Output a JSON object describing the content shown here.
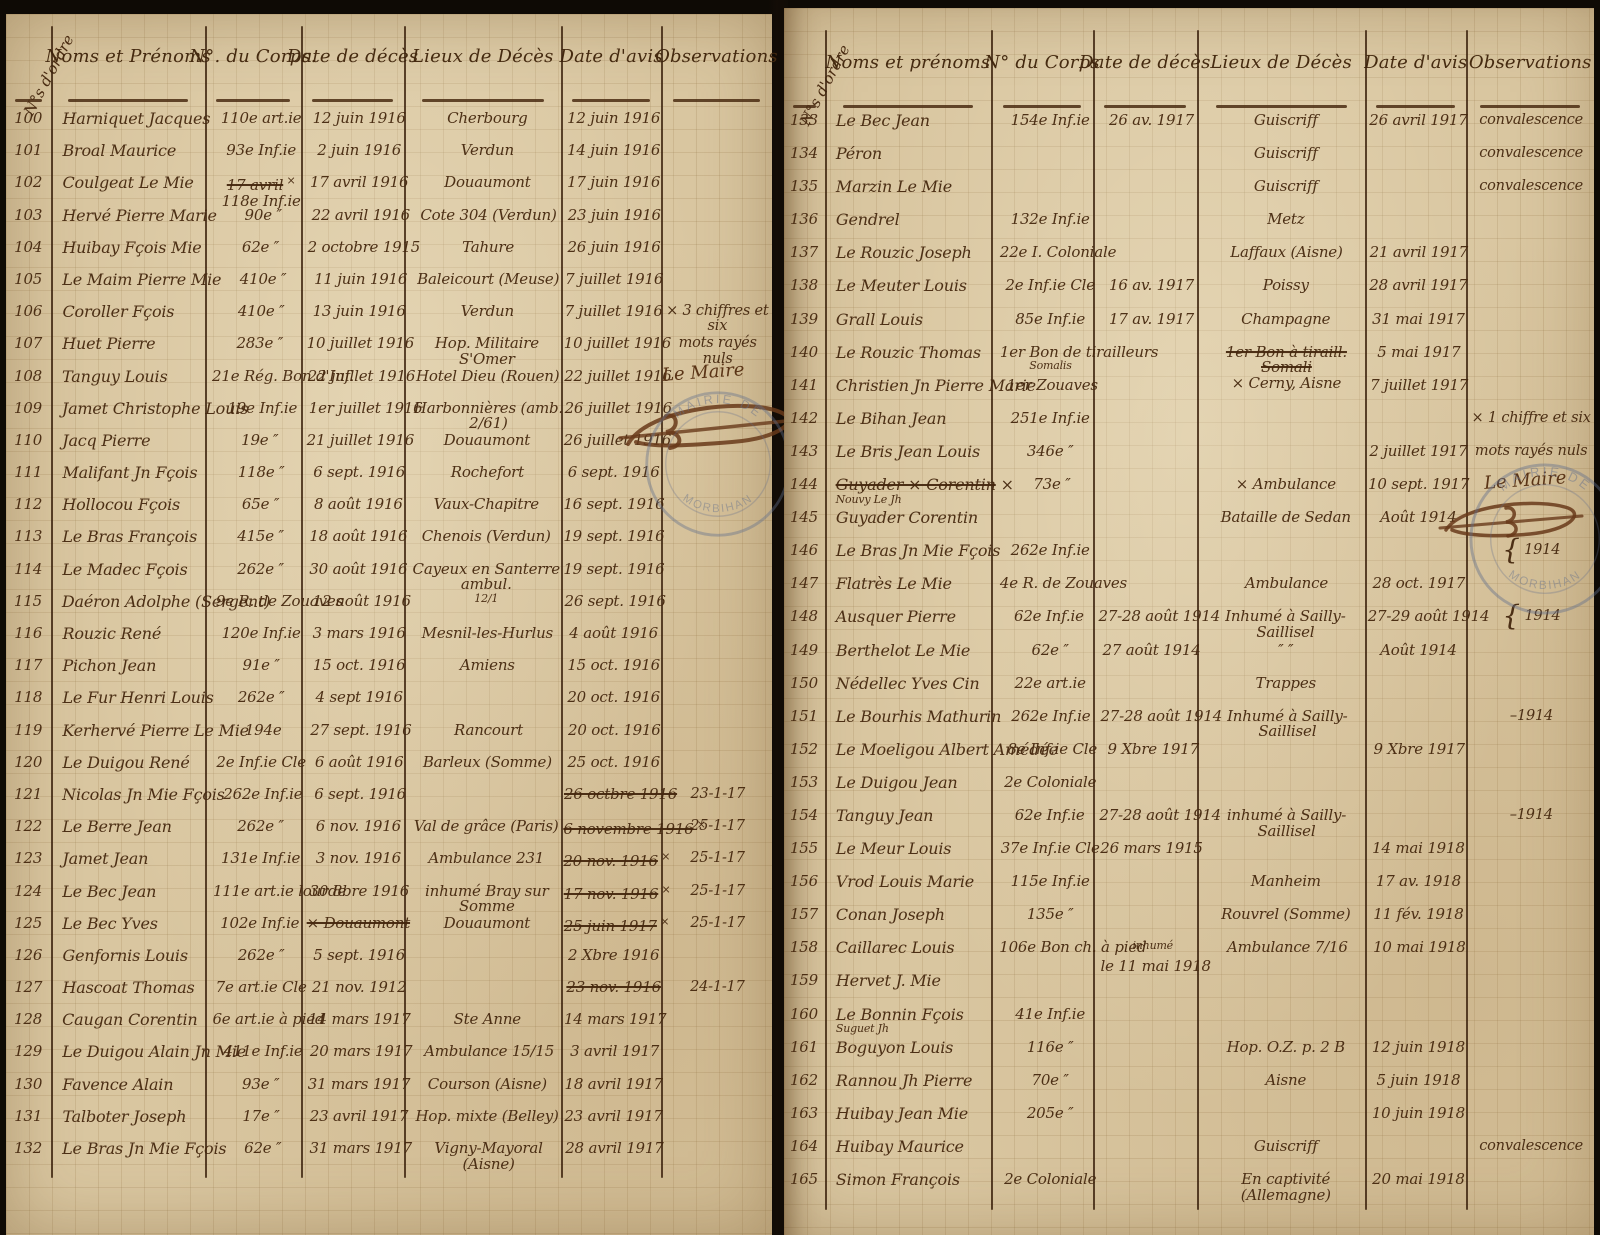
{
  "pages": [
    {
      "rot_label": "N°s d'ordre",
      "headers": {
        "noms": "Noms et Prénoms",
        "corps": "N°. du Corps.",
        "deces": "Date de décès",
        "lieux": "Lieux de Décès",
        "avis": "Date d'avis",
        "obs": "Observations"
      },
      "annotations": {
        "maire": "Le Maire",
        "stamp_top": "MAIRIE DE",
        "stamp_bottom": "MORBIHAN"
      },
      "rows": [
        {
          "n": "100",
          "name": "Harniquet Jacques",
          "corps": "110e art.ie",
          "dd": "12 juin 1916",
          "lieu": "Cherbourg",
          "da": "12 juin 1916",
          "obs": ""
        },
        {
          "n": "101",
          "name": "Broal Maurice",
          "corps": "93e Inf.ie",
          "dd": "2 juin 1916",
          "lieu": "Verdun",
          "da": "14 juin 1916",
          "obs": ""
        },
        {
          "n": "102",
          "name": "Coulgeat Le Mie",
          "corps": [
            {
              "t": "17 avril",
              "s": true
            },
            {
              "t": " ×",
              "sm": true
            },
            {
              "t": "118e Inf.ie",
              "br": true
            }
          ],
          "dd": "17 avril 1916",
          "lieu": "Douaumont",
          "da": "17 juin 1916",
          "obs": ""
        },
        {
          "n": "103",
          "name": "Hervé Pierre Marie",
          "corps": "90e ″",
          "dd": "22 avril 1916",
          "lieu": "Cote 304 (Verdun)",
          "da": "23 juin 1916",
          "obs": ""
        },
        {
          "n": "104",
          "name": "Huibay Fçois Mie",
          "corps": "62e ″",
          "dd": "2 octobre 1915",
          "lieu": "Tahure",
          "da": "26 juin 1916",
          "obs": ""
        },
        {
          "n": "105",
          "name": "Le Maim Pierre Mie",
          "corps": "410e ″",
          "dd": "11 juin 1916",
          "lieu": "Baleicourt (Meuse)",
          "da": "7 juillet 1916",
          "obs": ""
        },
        {
          "n": "106",
          "name": "Coroller Fçois",
          "corps": "410e ″",
          "dd": "13 juin 1916",
          "lieu": "Verdun",
          "da": "7 juillet 1916",
          "obs": "× 3 chiffres et six"
        },
        {
          "n": "107",
          "name": "Huet Pierre",
          "corps": "283e ″",
          "dd": "10 juillet 1916",
          "lieu": "Hop. Militaire S'Omer",
          "da": "10 juillet 1916",
          "obs": "mots rayés nuls"
        },
        {
          "n": "108",
          "name": "Tanguy Louis",
          "corps": "21e Rég. Bon d'Inf.",
          "dd": "22 juillet 1916",
          "lieu": "Hotel Dieu (Rouen)",
          "da": "22 juillet 1916",
          "obs": ""
        },
        {
          "n": "109",
          "name": "Jamet Christophe Louis",
          "corps": "19e Inf.ie",
          "dd": "1er juillet 1916",
          "lieu": "Harbonnières (amb. 2/61)",
          "da": "26 juillet 1916",
          "obs": ""
        },
        {
          "n": "110",
          "name": "Jacq Pierre",
          "corps": "19e ″",
          "dd": "21 juillet 1916",
          "lieu": "Douaumont",
          "da": "26 juillet 1916",
          "obs": ""
        },
        {
          "n": "111",
          "name": "Malifant Jn Fçois",
          "corps": "118e ″",
          "dd": "6 sept. 1916",
          "lieu": "Rochefort",
          "da": "6 sept. 1916",
          "obs": ""
        },
        {
          "n": "112",
          "name": "Hollocou Fçois",
          "corps": "65e ″",
          "dd": "8 août 1916",
          "lieu": "Vaux-Chapitre",
          "da": "16 sept. 1916",
          "obs": ""
        },
        {
          "n": "113",
          "name": "Le Bras François",
          "corps": "415e ″",
          "dd": "18 août 1916",
          "lieu": "Chenois (Verdun)",
          "da": "19 sept. 1916",
          "obs": ""
        },
        {
          "n": "114",
          "name": "Le Madec Fçois",
          "corps": "262e ″",
          "dd": "30 août 1916",
          "lieu": [
            {
              "t": "Cayeux en Santerre ambul."
            },
            {
              "t": "12/1",
              "br": true,
              "sm": true
            }
          ],
          "da": "19 sept. 1916",
          "obs": ""
        },
        {
          "n": "115",
          "name": "Daéron Adolphe (Sergent)",
          "corps": "9e R. de Zouaves",
          "dd": "12 août 1916",
          "lieu": "",
          "da": "26 sept. 1916",
          "obs": ""
        },
        {
          "n": "116",
          "name": "Rouzic René",
          "corps": "120e Inf.ie",
          "dd": "3 mars 1916",
          "lieu": "Mesnil-les-Hurlus",
          "da": "4 août 1916",
          "obs": ""
        },
        {
          "n": "117",
          "name": "Pichon Jean",
          "corps": "91e ″",
          "dd": "15 oct. 1916",
          "lieu": "Amiens",
          "da": "15 oct. 1916",
          "obs": ""
        },
        {
          "n": "118",
          "name": "Le Fur Henri Louis",
          "corps": "262e ″",
          "dd": "4 sept 1916",
          "lieu": "",
          "da": "20 oct. 1916",
          "obs": ""
        },
        {
          "n": "119",
          "name": "Kerhervé Pierre Le Mie",
          "corps": "194e",
          "dd": "27 sept. 1916",
          "lieu": "Rancourt",
          "da": "20 oct. 1916",
          "obs": ""
        },
        {
          "n": "120",
          "name": "Le Duigou René",
          "corps": "2e Inf.ie Cle",
          "dd": "6 août 1916",
          "lieu": "Barleux (Somme)",
          "da": "25 oct. 1916",
          "obs": ""
        },
        {
          "n": "121",
          "name": "Nicolas Jn Mie Fçois",
          "corps": "262e Inf.ie",
          "dd": "6 sept. 1916",
          "lieu": "",
          "da": [
            {
              "t": "26 octbre 1916",
              "s": true
            }
          ],
          "obs": "23-1-17"
        },
        {
          "n": "122",
          "name": "Le Berre Jean",
          "corps": "262e ″",
          "dd": "6 nov. 1916",
          "lieu": "Val de grâce (Paris)",
          "da": [
            {
              "t": "6 novembre 1916",
              "s": true
            },
            {
              "t": " ×",
              "sm": true
            }
          ],
          "obs": "25-1-17"
        },
        {
          "n": "123",
          "name": "Jamet Jean",
          "corps": "131e Inf.ie",
          "dd": "3 nov. 1916",
          "lieu": "Ambulance 231",
          "da": [
            {
              "t": "20 nov. 1916",
              "s": true
            },
            {
              "t": " ×",
              "sm": true
            }
          ],
          "obs": "25-1-17"
        },
        {
          "n": "124",
          "name": "Le Bec Jean",
          "corps": "111e art.ie lourde",
          "dd": "30 8bre 1916",
          "lieu": "inhumé Bray sur Somme",
          "da": [
            {
              "t": "17 nov. 1916",
              "s": true
            },
            {
              "t": " ×",
              "sm": true
            }
          ],
          "obs": "25-1-17"
        },
        {
          "n": "125",
          "name": "Le Bec Yves",
          "corps": "102e Inf.ie",
          "dd": [
            {
              "t": "× Douaumont",
              "s": true
            }
          ],
          "lieu": "Douaumont",
          "da": [
            {
              "t": "25 juin 1917",
              "s": true
            },
            {
              "t": " ×",
              "sm": true
            }
          ],
          "obs": "25-1-17"
        },
        {
          "n": "126",
          "name": "Genfornis Louis",
          "corps": "262e ″",
          "dd": "5 sept. 1916",
          "lieu": "",
          "da": "2 Xbre 1916",
          "obs": ""
        },
        {
          "n": "127",
          "name": "Hascoat Thomas",
          "corps": "7e art.ie Cle",
          "dd": "21 nov. 1912",
          "lieu": "",
          "da": [
            {
              "t": "23 nov. 1916",
              "s": true
            }
          ],
          "obs": "24-1-17"
        },
        {
          "n": "128",
          "name": "Caugan Corentin",
          "corps": "6e art.ie à pied",
          "dd": "14 mars 1917",
          "lieu": "Ste Anne",
          "da": "14 mars 1917",
          "obs": ""
        },
        {
          "n": "129",
          "name": "Le Duigou Alain Jn Mie",
          "corps": "411e Inf.ie",
          "dd": "20 mars 1917",
          "lieu": "Ambulance 15/15",
          "da": "3 avril 1917",
          "obs": ""
        },
        {
          "n": "130",
          "name": "Favence Alain",
          "corps": "93e ″",
          "dd": "31 mars 1917",
          "lieu": "Courson (Aisne)",
          "da": "18 avril 1917",
          "obs": ""
        },
        {
          "n": "131",
          "name": "Talboter Joseph",
          "corps": "17e ″",
          "dd": "23 avril 1917",
          "lieu": "Hop. mixte (Belley)",
          "da": "23 avril 1917",
          "obs": ""
        },
        {
          "n": "132",
          "name": "Le Bras Jn Mie Fçois",
          "corps": "62e ″",
          "dd": "31 mars 1917",
          "lieu": "Vigny-Mayoral (Aisne)",
          "da": "28 avril 1917",
          "obs": ""
        }
      ]
    },
    {
      "rot_label": "N°s d'ordre",
      "headers": {
        "noms": "Noms et prénoms",
        "corps": "N° du Corps",
        "deces": "Date de décès",
        "lieux": "Lieux de Décès",
        "avis": "Date d'avis",
        "obs": "Observations"
      },
      "annotations": {
        "maire": "Le Maire",
        "stamp_top": "MAIRIE DE",
        "stamp_bottom": "MORBIHAN"
      },
      "rows": [
        {
          "n": "133",
          "name": "Le Bec Jean",
          "corps": "154e Inf.ie",
          "dd": "26 av. 1917",
          "lieu": "Guiscriff",
          "da": "26 avril 1917",
          "obs": "convalescence"
        },
        {
          "n": "134",
          "name": "Péron",
          "corps": "",
          "dd": "",
          "lieu": "Guiscriff",
          "da": "",
          "obs": "convalescence"
        },
        {
          "n": "135",
          "name": "Marzin Le Mie",
          "corps": "",
          "dd": "",
          "lieu": "Guiscriff",
          "da": "",
          "obs": "convalescence"
        },
        {
          "n": "136",
          "name": "Gendrel",
          "corps": "132e Inf.ie",
          "dd": "",
          "lieu": "Metz",
          "da": "",
          "obs": ""
        },
        {
          "n": "137",
          "name": "Le Rouzic Joseph",
          "corps": "22e I. Coloniale",
          "dd": "",
          "lieu": "Laffaux (Aisne)",
          "da": "21 avril 1917",
          "obs": ""
        },
        {
          "n": "138",
          "name": "Le Meuter Louis",
          "corps": "2e Inf.ie Cle",
          "dd": "16 av. 1917",
          "lieu": "Poissy",
          "da": "28 avril 1917",
          "obs": ""
        },
        {
          "n": "139",
          "name": "Grall Louis",
          "corps": "85e Inf.ie",
          "dd": "17 av. 1917",
          "lieu": "Champagne",
          "da": "31 mai 1917",
          "obs": ""
        },
        {
          "n": "140",
          "name": "Le Rouzic Thomas",
          "corps": [
            {
              "t": "1er Bon de tirailleurs"
            },
            {
              "t": "Somalis",
              "br": true,
              "sm": true
            }
          ],
          "dd": "",
          "lieu": [
            {
              "t": "1er Bon à tiraill. Somali",
              "s": true
            },
            {
              "t": "× Cerny, Aisne",
              "br": true
            }
          ],
          "da": "5 mai 1917",
          "obs": ""
        },
        {
          "n": "141",
          "name": "Christien Jn Pierre Marie",
          "corps": "1er Zouaves",
          "dd": "",
          "lieu": "",
          "da": "7 juillet 1917",
          "obs": ""
        },
        {
          "n": "142",
          "name": "Le Bihan Jean",
          "corps": "251e Inf.ie",
          "dd": "",
          "lieu": "",
          "da": "",
          "obs": "× 1 chiffre et six"
        },
        {
          "n": "143",
          "name": "Le Bris Jean Louis",
          "corps": "346e ″",
          "dd": "",
          "lieu": "",
          "da": "2 juillet 1917",
          "obs": "mots rayés nuls"
        },
        {
          "n": "144",
          "name": [
            {
              "t": "Guyader × Corentin",
              "s": true
            },
            {
              "t": " ×"
            },
            {
              "t": "Nouvy Le Jh",
              "br": true,
              "sm": true
            }
          ],
          "corps": "73e ″",
          "dd": "",
          "lieu": "× Ambulance",
          "da": "10 sept. 1917",
          "obs": ""
        },
        {
          "n": "145",
          "name": "Guyader Corentin",
          "corps": "",
          "dd": "",
          "lieu": "Bataille de Sedan",
          "da": "Août 1914",
          "obs": ""
        },
        {
          "n": "146",
          "name": "Le Bras Jn Mie Fçois",
          "corps": "262e Inf.ie",
          "dd": "",
          "lieu": "",
          "da": "",
          "obs": [
            {
              "t": "{",
              "lg": true
            },
            {
              "t": " 1914"
            }
          ]
        },
        {
          "n": "147",
          "name": "Flatrès Le Mie",
          "corps": "4e R. de Zouaves",
          "dd": "",
          "lieu": "Ambulance",
          "da": "28 oct. 1917",
          "obs": ""
        },
        {
          "n": "148",
          "name": "Ausquer Pierre",
          "corps": "62e Inf.ie",
          "dd": "27-28 août 1914",
          "lieu": "Inhumé à Sailly-Saillisel",
          "da": "27-29 août 1914",
          "obs": [
            {
              "t": "{",
              "lg": true
            },
            {
              "t": " 1914"
            }
          ]
        },
        {
          "n": "149",
          "name": "Berthelot Le Mie",
          "corps": "62e ″",
          "dd": "27 août 1914",
          "lieu": "″      ″",
          "da": "Août 1914",
          "obs": ""
        },
        {
          "n": "150",
          "name": "Nédellec Yves Cin",
          "corps": "22e art.ie",
          "dd": "",
          "lieu": "Trappes",
          "da": "",
          "obs": ""
        },
        {
          "n": "151",
          "name": "Le Bourhis Mathurin",
          "corps": "262e Inf.ie",
          "dd": "27-28 août 1914",
          "lieu": "Inhumé à Sailly-Saillisel",
          "da": "",
          "obs": "–1914"
        },
        {
          "n": "152",
          "name": "Le Moeligou Albert Amédée",
          "corps": "8e Inf.ie Cle",
          "dd": "9 Xbre 1917",
          "lieu": "",
          "da": "9 Xbre 1917",
          "obs": ""
        },
        {
          "n": "153",
          "name": "Le Duigou Jean",
          "corps": "2e Coloniale",
          "dd": "",
          "lieu": "",
          "da": "",
          "obs": ""
        },
        {
          "n": "154",
          "name": "Tanguy Jean",
          "corps": "62e Inf.ie",
          "dd": "27-28 août 1914",
          "lieu": "inhumé à Sailly-Saillisel",
          "da": "",
          "obs": "–1914"
        },
        {
          "n": "155",
          "name": "Le Meur Louis",
          "corps": "37e Inf.ie Cle",
          "dd": "26 mars 1915",
          "lieu": "",
          "da": "14 mai 1918",
          "obs": ""
        },
        {
          "n": "156",
          "name": "Vrod Louis Marie",
          "corps": "115e Inf.ie",
          "dd": "",
          "lieu": "Manheim",
          "da": "17 av. 1918",
          "obs": ""
        },
        {
          "n": "157",
          "name": "Conan Joseph",
          "corps": "135e ″",
          "dd": "",
          "lieu": "Rouvrel (Somme)",
          "da": "11 fév. 1918",
          "obs": ""
        },
        {
          "n": "158",
          "name": "Caillarec Louis",
          "corps": "106e Bon ch. à pied",
          "dd": [
            {
              "t": "inhumé",
              "sm": true
            },
            {
              "t": "le 11 mai 1918",
              "br": true
            }
          ],
          "lieu": "Ambulance 7/16",
          "da": "10 mai 1918",
          "obs": ""
        },
        {
          "n": "159",
          "name": "Hervet J. Mie",
          "corps": "",
          "dd": "",
          "lieu": "",
          "da": "",
          "obs": ""
        },
        {
          "n": "160",
          "name": [
            {
              "t": "Le Bonnin Fçois"
            },
            {
              "t": "Suguet Jh",
              "br": true,
              "sm": true
            }
          ],
          "corps": "41e Inf.ie",
          "dd": "",
          "lieu": "",
          "da": "",
          "obs": ""
        },
        {
          "n": "161",
          "name": "Boguyon Louis",
          "corps": "116e ″",
          "dd": "",
          "lieu": "Hop. O.Z. p. 2 B",
          "da": "12 juin 1918",
          "obs": ""
        },
        {
          "n": "162",
          "name": "Rannou Jh Pierre",
          "corps": "70e ″",
          "dd": "",
          "lieu": "Aisne",
          "da": "5 juin 1918",
          "obs": ""
        },
        {
          "n": "163",
          "name": "Huibay Jean Mie",
          "corps": "205e ″",
          "dd": "",
          "lieu": "",
          "da": "10 juin 1918",
          "obs": ""
        },
        {
          "n": "164",
          "name": "Huibay Maurice",
          "corps": "",
          "dd": "",
          "lieu": "Guiscriff",
          "da": "",
          "obs": "convalescence"
        },
        {
          "n": "165",
          "name": "Simon François",
          "corps": "2e Coloniale",
          "dd": "",
          "lieu": "En captivité (Allemagne)",
          "da": "20 mai 1918",
          "obs": ""
        }
      ]
    }
  ]
}
